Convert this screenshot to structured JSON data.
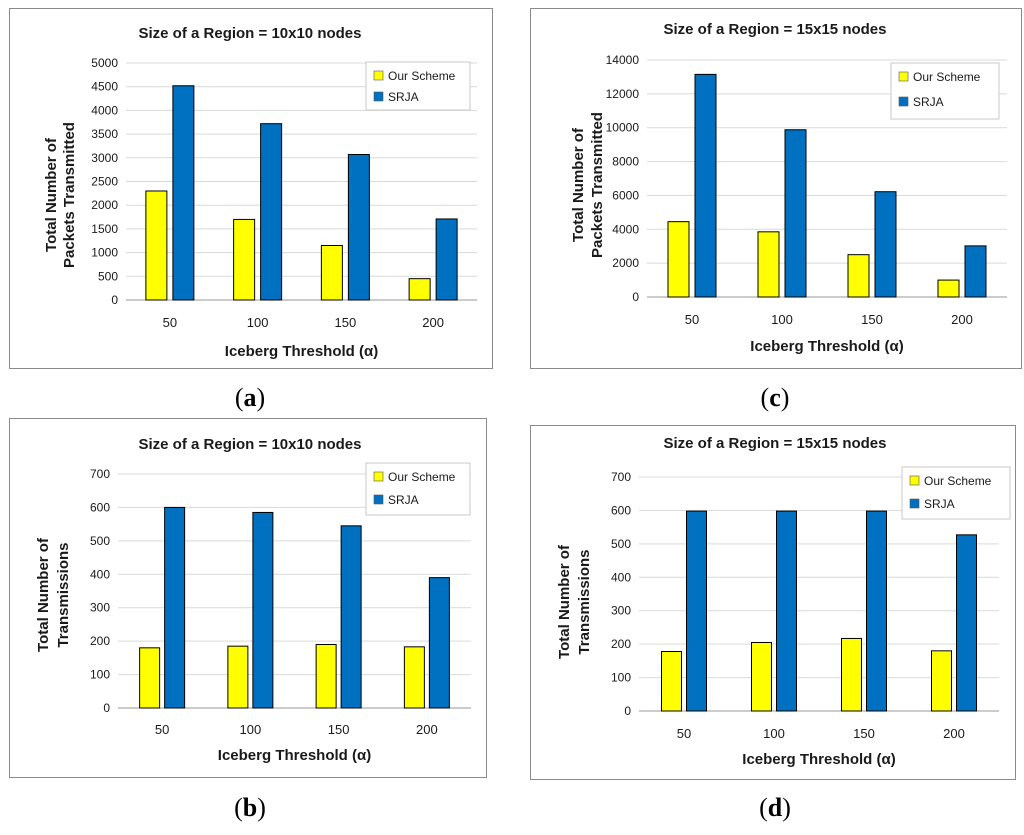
{
  "chart_data": [
    {
      "id": "a",
      "type": "bar",
      "title": "Size of a Region = 10x10 nodes",
      "xlabel": "Iceberg Threshold (α)",
      "ylabel": [
        "Total Number of",
        "Packets Transmitted"
      ],
      "categories": [
        "50",
        "100",
        "150",
        "200"
      ],
      "series": [
        {
          "name": "Our Scheme",
          "color": "#ffff00",
          "values": [
            2300,
            1700,
            1150,
            450
          ]
        },
        {
          "name": "SRJA",
          "color": "#0070c0",
          "values": [
            4520,
            3720,
            3070,
            1710
          ]
        }
      ],
      "ylim": [
        0,
        5000
      ],
      "yticks": [
        "0",
        "500",
        "1000",
        "1500",
        "2000",
        "2500",
        "3000",
        "3500",
        "4000",
        "4500",
        "5000"
      ],
      "legend": "top-right",
      "grid": true,
      "caption": "a"
    },
    {
      "id": "c",
      "type": "bar",
      "title": "Size of a Region = 15x15 nodes",
      "xlabel": "Iceberg Threshold (α)",
      "ylabel": [
        "Total Number of",
        "Packets Transmitted"
      ],
      "categories": [
        "50",
        "100",
        "150",
        "200"
      ],
      "series": [
        {
          "name": "Our Scheme",
          "color": "#ffff00",
          "values": [
            4450,
            3850,
            2500,
            1000
          ]
        },
        {
          "name": "SRJA",
          "color": "#0070c0",
          "values": [
            13150,
            9880,
            6220,
            3020
          ]
        }
      ],
      "ylim": [
        0,
        14000
      ],
      "yticks": [
        "0",
        "2000",
        "4000",
        "6000",
        "8000",
        "10000",
        "12000",
        "14000"
      ],
      "legend": "top-right",
      "grid": true,
      "caption": "c"
    },
    {
      "id": "b",
      "type": "bar",
      "title": "Size of a Region = 10x10 nodes",
      "xlabel": "Iceberg Threshold (α)",
      "ylabel": [
        "Total Number of",
        "Transmissions"
      ],
      "categories": [
        "50",
        "100",
        "150",
        "200"
      ],
      "series": [
        {
          "name": "Our Scheme",
          "color": "#ffff00",
          "values": [
            180,
            185,
            190,
            183
          ]
        },
        {
          "name": "SRJA",
          "color": "#0070c0",
          "values": [
            600,
            585,
            545,
            390
          ]
        }
      ],
      "ylim": [
        0,
        700
      ],
      "yticks": [
        "0",
        "100",
        "200",
        "300",
        "400",
        "500",
        "600",
        "700"
      ],
      "legend": "top-right",
      "grid": true,
      "caption": "b"
    },
    {
      "id": "d",
      "type": "bar",
      "title": "Size of a Region = 15x15 nodes",
      "xlabel": "Iceberg Threshold (α)",
      "ylabel": [
        "Total Number of",
        "Transmissions"
      ],
      "categories": [
        "50",
        "100",
        "150",
        "200"
      ],
      "series": [
        {
          "name": "Our Scheme",
          "color": "#ffff00",
          "values": [
            178,
            205,
            217,
            180
          ]
        },
        {
          "name": "SRJA",
          "color": "#0070c0",
          "values": [
            598,
            598,
            598,
            527
          ]
        }
      ],
      "ylim": [
        0,
        700
      ],
      "yticks": [
        "0",
        "100",
        "200",
        "300",
        "400",
        "500",
        "600",
        "700"
      ],
      "legend": "top-right",
      "grid": true,
      "caption": "d"
    }
  ]
}
